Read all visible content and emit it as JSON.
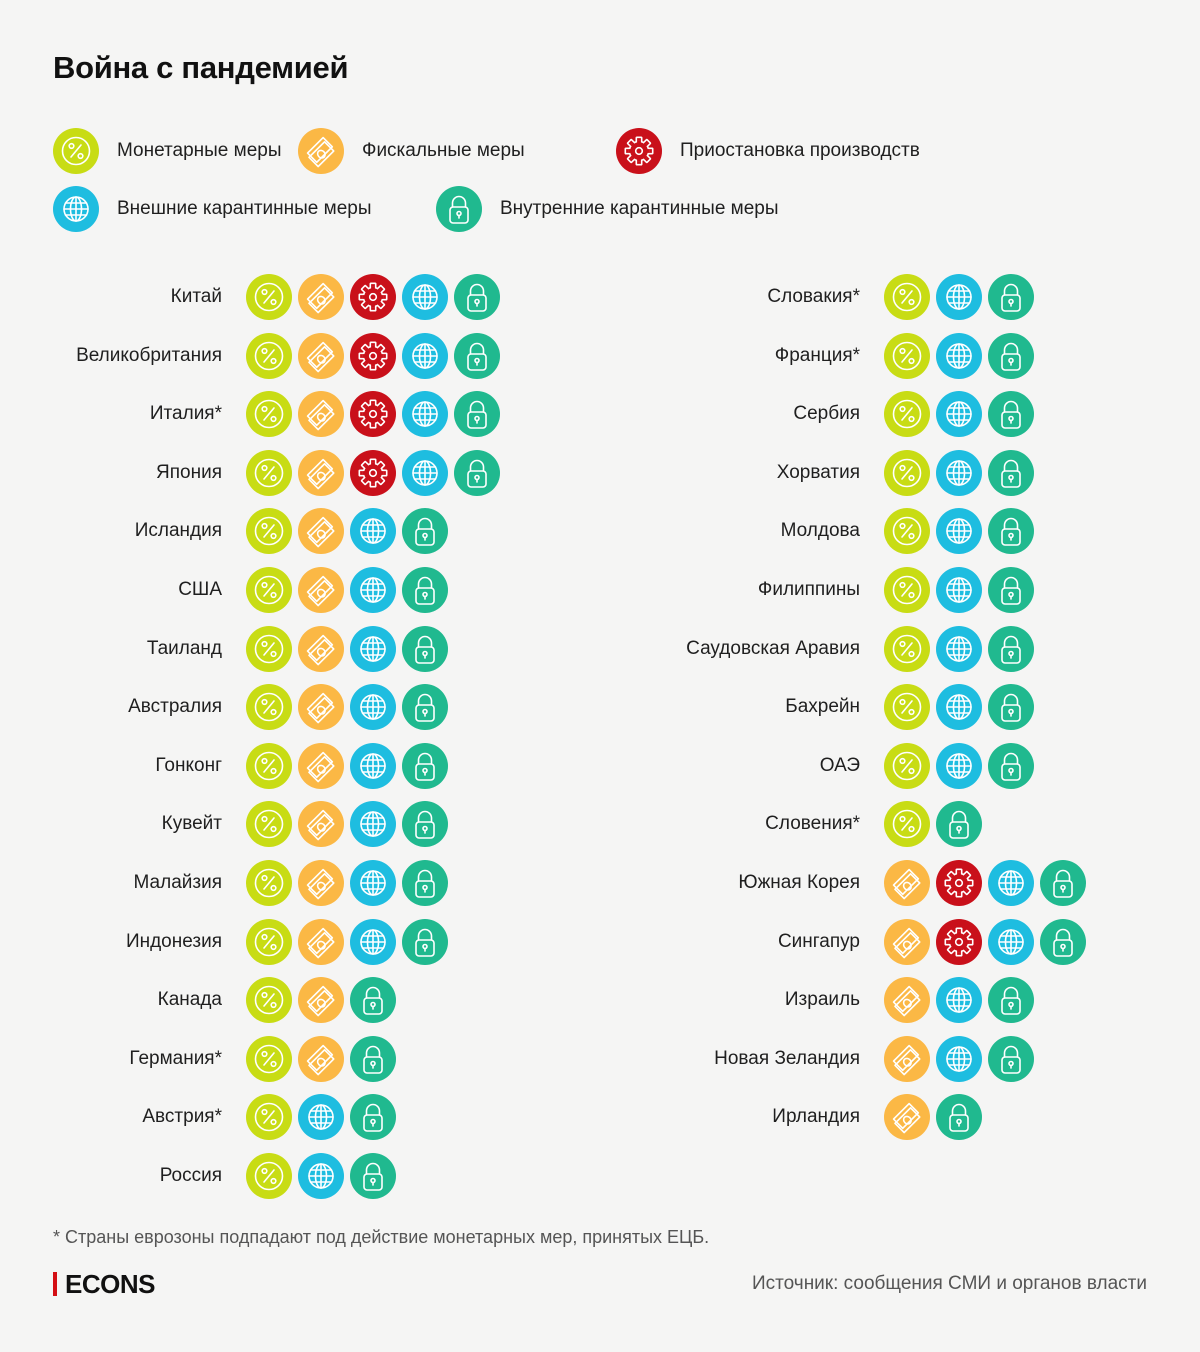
{
  "title": "Война с пандемией",
  "legend": [
    {
      "key": "monetary",
      "label": "Монетарные меры",
      "icon": "percent-icon",
      "color": "#c8dc14"
    },
    {
      "key": "fiscal",
      "label": "Фискальные меры",
      "icon": "money-icon",
      "color": "#fbb845"
    },
    {
      "key": "production",
      "label": "Приостановка производств",
      "icon": "gear-icon",
      "color": "#c9101a"
    },
    {
      "key": "external",
      "label": "Внешние карантинные меры",
      "icon": "globe-icon",
      "color": "#1ebde0"
    },
    {
      "key": "internal",
      "label": "Внутренние карантинные меры",
      "icon": "lock-icon",
      "color": "#20b98f"
    }
  ],
  "chart_data": {
    "type": "table",
    "title": "Война с пандемией",
    "columns": [
      "Монетарные меры",
      "Фискальные меры",
      "Приостановка производств",
      "Внешние карантинные меры",
      "Внутренние карантинные меры"
    ],
    "left_column": [
      {
        "country": "Китай",
        "measures": [
          "monetary",
          "fiscal",
          "production",
          "external",
          "internal"
        ]
      },
      {
        "country": "Великобритания",
        "measures": [
          "monetary",
          "fiscal",
          "production",
          "external",
          "internal"
        ]
      },
      {
        "country": "Италия*",
        "measures": [
          "monetary",
          "fiscal",
          "production",
          "external",
          "internal"
        ]
      },
      {
        "country": "Япония",
        "measures": [
          "monetary",
          "fiscal",
          "production",
          "external",
          "internal"
        ]
      },
      {
        "country": "Исландия",
        "measures": [
          "monetary",
          "fiscal",
          "external",
          "internal"
        ]
      },
      {
        "country": "США",
        "measures": [
          "monetary",
          "fiscal",
          "external",
          "internal"
        ]
      },
      {
        "country": "Таиланд",
        "measures": [
          "monetary",
          "fiscal",
          "external",
          "internal"
        ]
      },
      {
        "country": "Австралия",
        "measures": [
          "monetary",
          "fiscal",
          "external",
          "internal"
        ]
      },
      {
        "country": "Гонконг",
        "measures": [
          "monetary",
          "fiscal",
          "external",
          "internal"
        ]
      },
      {
        "country": "Кувейт",
        "measures": [
          "monetary",
          "fiscal",
          "external",
          "internal"
        ]
      },
      {
        "country": "Малайзия",
        "measures": [
          "monetary",
          "fiscal",
          "external",
          "internal"
        ]
      },
      {
        "country": "Индонезия",
        "measures": [
          "monetary",
          "fiscal",
          "external",
          "internal"
        ]
      },
      {
        "country": "Канада",
        "measures": [
          "monetary",
          "fiscal",
          "internal"
        ]
      },
      {
        "country": "Германия*",
        "measures": [
          "monetary",
          "fiscal",
          "internal"
        ]
      },
      {
        "country": "Австрия*",
        "measures": [
          "monetary",
          "external",
          "internal"
        ]
      },
      {
        "country": "Россия",
        "measures": [
          "monetary",
          "external",
          "internal"
        ]
      }
    ],
    "right_column": [
      {
        "country": "Словакия*",
        "measures": [
          "monetary",
          "external",
          "internal"
        ]
      },
      {
        "country": "Франция*",
        "measures": [
          "monetary",
          "external",
          "internal"
        ]
      },
      {
        "country": "Сербия",
        "measures": [
          "monetary",
          "external",
          "internal"
        ]
      },
      {
        "country": "Хорватия",
        "measures": [
          "monetary",
          "external",
          "internal"
        ]
      },
      {
        "country": "Молдова",
        "measures": [
          "monetary",
          "external",
          "internal"
        ]
      },
      {
        "country": "Филиппины",
        "measures": [
          "monetary",
          "external",
          "internal"
        ]
      },
      {
        "country": "Саудовская Аравия",
        "measures": [
          "monetary",
          "external",
          "internal"
        ]
      },
      {
        "country": "Бахрейн",
        "measures": [
          "monetary",
          "external",
          "internal"
        ]
      },
      {
        "country": "ОАЭ",
        "measures": [
          "monetary",
          "external",
          "internal"
        ]
      },
      {
        "country": "Словения*",
        "measures": [
          "monetary",
          "internal"
        ]
      },
      {
        "country": "Южная Корея",
        "measures": [
          "fiscal",
          "production",
          "external",
          "internal"
        ]
      },
      {
        "country": "Сингапур",
        "measures": [
          "fiscal",
          "production",
          "external",
          "internal"
        ]
      },
      {
        "country": "Израиль",
        "measures": [
          "fiscal",
          "external",
          "internal"
        ]
      },
      {
        "country": "Новая Зеландия",
        "measures": [
          "fiscal",
          "external",
          "internal"
        ]
      },
      {
        "country": "Ирландия",
        "measures": [
          "fiscal",
          "internal"
        ]
      }
    ]
  },
  "footnote": "* Страны еврозоны подпадают под действие монетарных мер, принятых ЕЦБ.",
  "logo": "ECONS",
  "source": "Источник: сообщения СМИ и органов власти"
}
